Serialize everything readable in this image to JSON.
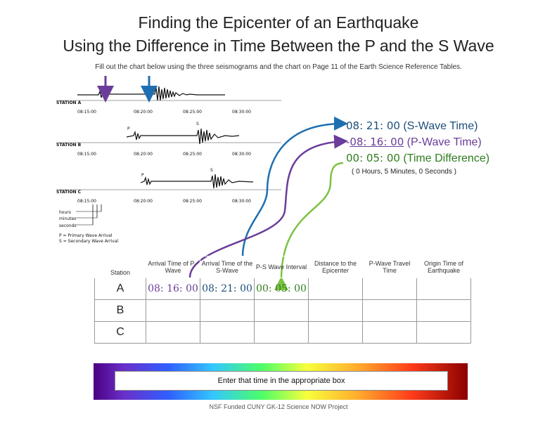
{
  "title_line1": "Finding the Epicenter of an Earthquake",
  "title_line2": "Using the Difference in Time Between the P and the S Wave",
  "instruction": "Fill out the chart below using the three seismograms and the chart on Page 11 of the Earth Science Reference Tables.",
  "seismogram": {
    "stations": [
      "STATION A",
      "STATION B",
      "STATION C"
    ],
    "times": [
      "08:15:00",
      "08:20:00",
      "08:25:00",
      "08:30:00"
    ],
    "p_label": "P",
    "s_label": "S",
    "legend_units": [
      "hours",
      "minutes",
      "seconds"
    ],
    "legend_p": "P = Primary Wave Arrival",
    "legend_s": "S = Secondary Wave Arrival"
  },
  "calc": {
    "s_val": "08: 21: 00",
    "s_lbl": " (S-Wave Time)",
    "p_prefix": "-",
    "p_val": "08: 16: 00",
    "p_lbl": " (P-Wave Time)",
    "d_val": "00: 05: 00",
    "d_lbl": "  (Time Difference)",
    "note": "( 0 Hours, 5 Minutes, 0 Seconds )"
  },
  "table": {
    "headers": [
      "Station",
      "Arrival Time of P -Wave",
      "Arrival Time of the S-Wave",
      "P-S Wave Interval",
      "Distance to the Epicenter",
      "P-Wave Travel Time",
      "Origin Time of Earthquake"
    ],
    "rows": [
      {
        "station": "A",
        "p": "08: 16: 00",
        "s": "08: 21: 00",
        "interval": "00: 05: 00",
        "distance": "",
        "travel": "",
        "origin": ""
      },
      {
        "station": "B",
        "p": "",
        "s": "",
        "interval": "",
        "distance": "",
        "travel": "",
        "origin": ""
      },
      {
        "station": "C",
        "p": "",
        "s": "",
        "interval": "",
        "distance": "",
        "travel": "",
        "origin": ""
      }
    ]
  },
  "banner": "Enter that time in the appropriate box",
  "footer": "NSF Funded CUNY GK-12 Science NOW Project",
  "colors": {
    "s_wave": "#1f6fb0",
    "p_wave": "#6a3d9a",
    "difference": "#7dc242"
  }
}
